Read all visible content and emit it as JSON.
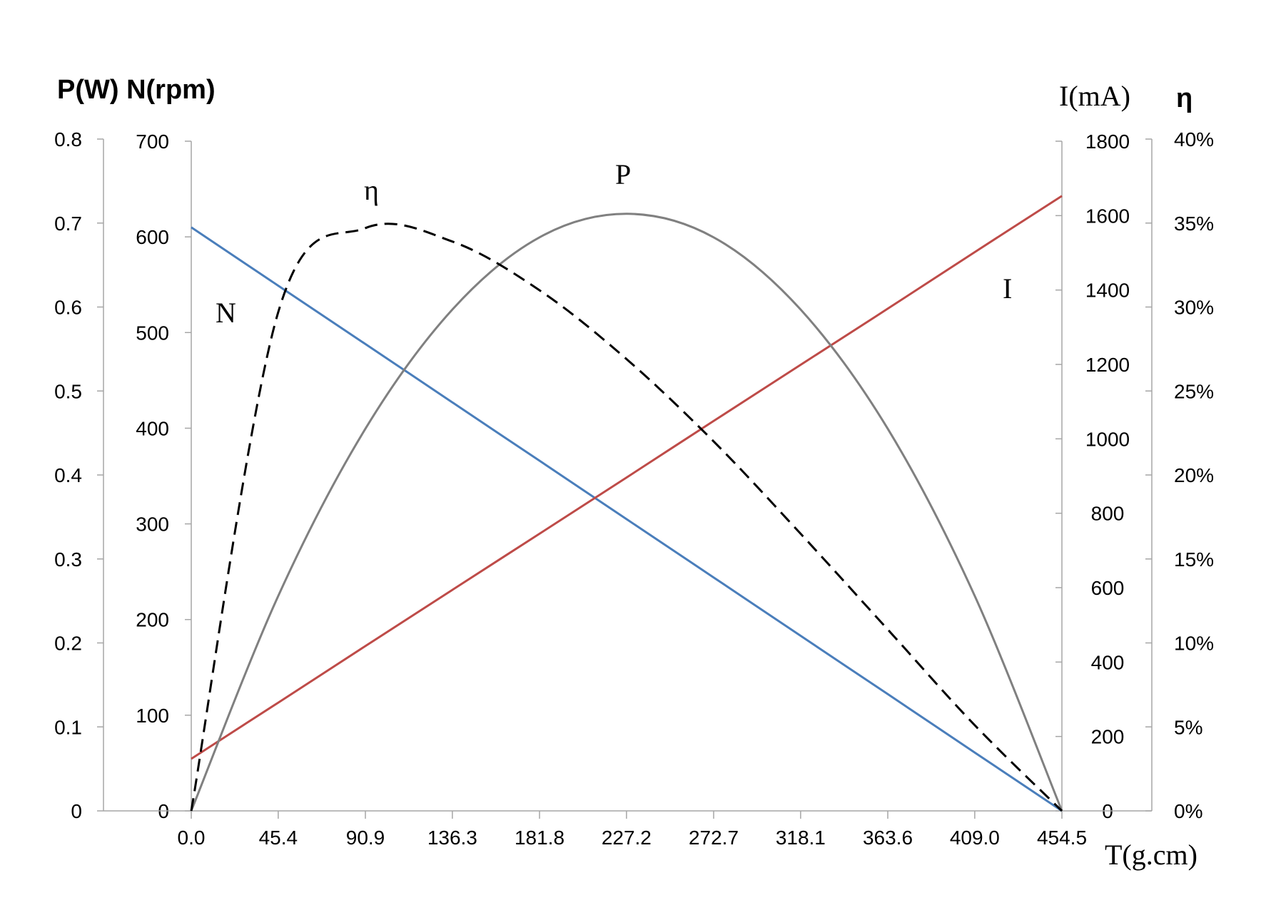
{
  "chart_data": {
    "type": "line",
    "x": [
      0.0,
      45.4,
      90.9,
      136.3,
      181.8,
      227.2,
      272.7,
      318.1,
      363.6,
      409.0,
      454.5
    ],
    "x_tick_labels": [
      "0.0",
      "45.4",
      "90.9",
      "136.3",
      "181.8",
      "227.2",
      "272.7",
      "318.1",
      "363.6",
      "409.0",
      "454.5"
    ],
    "xlabel": "T(g.cm)",
    "xlim": [
      0,
      454.5
    ],
    "left_title": "P(W) N(rpm)",
    "right_title_current": "I(mA)",
    "right_title_efficiency": "η",
    "axes": {
      "P": {
        "ylim": [
          0,
          0.8
        ],
        "ticks": [
          "0",
          "0.1",
          "0.2",
          "0.3",
          "0.4",
          "0.5",
          "0.6",
          "0.7",
          "0.8"
        ]
      },
      "N": {
        "ylim": [
          0,
          700
        ],
        "ticks": [
          "0",
          "100",
          "200",
          "300",
          "400",
          "500",
          "600",
          "700"
        ]
      },
      "I": {
        "ylim": [
          0,
          1800
        ],
        "ticks": [
          "0",
          "200",
          "400",
          "600",
          "800",
          "1000",
          "1200",
          "1400",
          "1600",
          "1800"
        ]
      },
      "eta": {
        "ylim": [
          0,
          0.4
        ],
        "ticks": [
          "0%",
          "5%",
          "10%",
          "15%",
          "20%",
          "25%",
          "30%",
          "35%",
          "40%"
        ]
      }
    },
    "series": [
      {
        "name": "N",
        "axis": "N",
        "color": "#4a7ebb",
        "dash": false,
        "values": [
          610,
          549,
          488,
          427,
          366,
          305,
          244,
          183,
          122,
          61,
          0
        ]
      },
      {
        "name": "I",
        "axis": "I",
        "color": "#be4b48",
        "dash": false,
        "values": [
          140,
          291,
          443,
          594,
          745,
          896,
          1048,
          1199,
          1350,
          1502,
          1653
        ]
      },
      {
        "name": "P",
        "axis": "P",
        "color": "#808080",
        "dash": false,
        "values": [
          0.0,
          0.256,
          0.455,
          0.597,
          0.683,
          0.711,
          0.683,
          0.597,
          0.455,
          0.256,
          0.0
        ]
      },
      {
        "name": "η",
        "axis": "eta",
        "color": "#000000",
        "dash": true,
        "values": [
          0.0,
          0.297,
          0.347,
          0.339,
          0.31,
          0.269,
          0.22,
          0.165,
          0.108,
          0.051,
          0.0
        ]
      }
    ]
  }
}
